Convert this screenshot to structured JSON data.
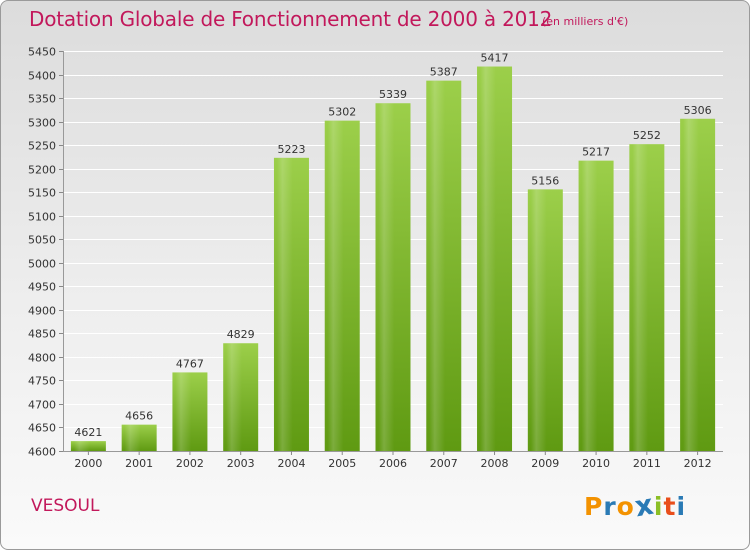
{
  "header": {
    "title": "Dotation Globale de Fonctionnement de 2000 à 2012",
    "unit": "(en milliers d'€)"
  },
  "commune": "VESOUL",
  "logo": {
    "text": "Proxiti",
    "letters": [
      "P",
      "r",
      "o",
      "x",
      "i",
      "t",
      "i"
    ],
    "colors": [
      "#f39200",
      "#2a7ab5",
      "#f39200",
      "#2a7ab5",
      "#8cbf26",
      "#e94e1b",
      "#2a7ab5"
    ]
  },
  "colors": {
    "bar_top": "#9ccf4a",
    "bar_bottom": "#5f9a12",
    "text": "#333333",
    "accent": "#c2185b"
  },
  "chart_data": {
    "type": "bar",
    "title": "Dotation Globale de Fonctionnement de 2000 à 2012",
    "subtitle": "(en milliers d'€)",
    "xlabel": "",
    "ylabel": "",
    "categories": [
      "2000",
      "2001",
      "2002",
      "2003",
      "2004",
      "2005",
      "2006",
      "2007",
      "2008",
      "2009",
      "2010",
      "2011",
      "2012"
    ],
    "values": [
      4621,
      4656,
      4767,
      4829,
      5223,
      5302,
      5339,
      5387,
      5417,
      5156,
      5217,
      5252,
      5306
    ],
    "ylim": [
      4600,
      5450
    ],
    "yticks": [
      4600,
      4650,
      4700,
      4750,
      4800,
      4850,
      4900,
      4950,
      5000,
      5050,
      5100,
      5150,
      5200,
      5250,
      5300,
      5350,
      5400,
      5450
    ],
    "grid": true
  }
}
